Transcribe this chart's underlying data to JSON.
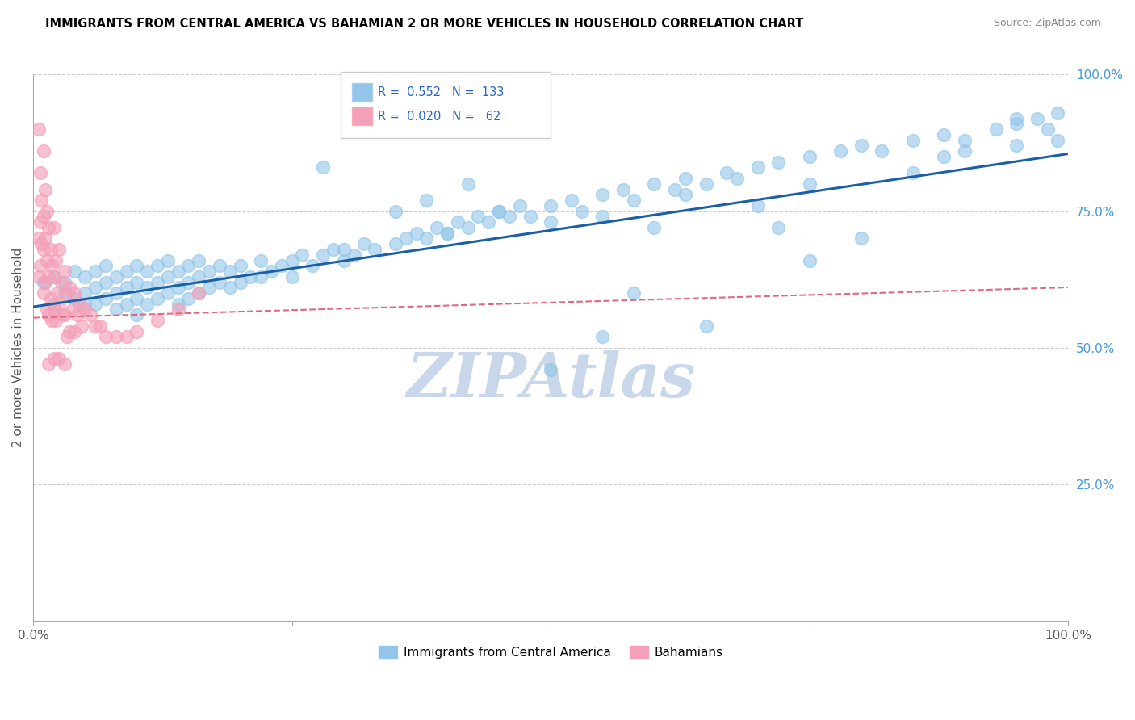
{
  "title": "IMMIGRANTS FROM CENTRAL AMERICA VS BAHAMIAN 2 OR MORE VEHICLES IN HOUSEHOLD CORRELATION CHART",
  "source": "Source: ZipAtlas.com",
  "ylabel": "2 or more Vehicles in Household",
  "xlim": [
    0,
    1.0
  ],
  "ylim": [
    0,
    1.0
  ],
  "ytick_right_labels": [
    "25.0%",
    "50.0%",
    "75.0%",
    "100.0%"
  ],
  "ytick_right_values": [
    0.25,
    0.5,
    0.75,
    1.0
  ],
  "color_blue": "#92C5E8",
  "color_pink": "#F4A0B8",
  "line_blue": "#1A5FA8",
  "line_pink": "#E06880",
  "watermark_color": "#C8D8EA",
  "blue_r": 0.552,
  "blue_n": 133,
  "pink_r": 0.02,
  "pink_n": 62,
  "blue_line_x0": 0.0,
  "blue_line_y0": 0.575,
  "blue_line_x1": 1.0,
  "blue_line_y1": 0.855,
  "pink_line_x0": 0.0,
  "pink_line_y0": 0.555,
  "pink_line_x1": 0.18,
  "pink_line_y1": 0.565,
  "blue_scatter_x": [
    0.01,
    0.02,
    0.02,
    0.03,
    0.03,
    0.04,
    0.04,
    0.05,
    0.05,
    0.05,
    0.06,
    0.06,
    0.06,
    0.07,
    0.07,
    0.07,
    0.08,
    0.08,
    0.08,
    0.09,
    0.09,
    0.09,
    0.1,
    0.1,
    0.1,
    0.1,
    0.11,
    0.11,
    0.11,
    0.12,
    0.12,
    0.12,
    0.13,
    0.13,
    0.13,
    0.14,
    0.14,
    0.14,
    0.15,
    0.15,
    0.15,
    0.16,
    0.16,
    0.16,
    0.17,
    0.17,
    0.18,
    0.18,
    0.19,
    0.19,
    0.2,
    0.2,
    0.21,
    0.22,
    0.22,
    0.23,
    0.24,
    0.25,
    0.25,
    0.26,
    0.27,
    0.28,
    0.29,
    0.3,
    0.3,
    0.31,
    0.32,
    0.33,
    0.35,
    0.36,
    0.37,
    0.38,
    0.39,
    0.4,
    0.41,
    0.42,
    0.43,
    0.44,
    0.45,
    0.46,
    0.47,
    0.48,
    0.5,
    0.5,
    0.52,
    0.53,
    0.55,
    0.55,
    0.57,
    0.58,
    0.6,
    0.62,
    0.63,
    0.65,
    0.67,
    0.68,
    0.7,
    0.72,
    0.75,
    0.75,
    0.78,
    0.8,
    0.82,
    0.85,
    0.88,
    0.88,
    0.9,
    0.93,
    0.95,
    0.95,
    0.97,
    0.98,
    0.99,
    0.99,
    0.45,
    0.6,
    0.63,
    0.7,
    0.35,
    0.4,
    0.55,
    0.28,
    0.5,
    0.65,
    0.75,
    0.8,
    0.42,
    0.58,
    0.72,
    0.85,
    0.9,
    0.95,
    0.38
  ],
  "blue_scatter_y": [
    0.62,
    0.63,
    0.58,
    0.62,
    0.6,
    0.64,
    0.59,
    0.63,
    0.6,
    0.58,
    0.64,
    0.61,
    0.58,
    0.65,
    0.62,
    0.59,
    0.63,
    0.6,
    0.57,
    0.64,
    0.61,
    0.58,
    0.65,
    0.62,
    0.59,
    0.56,
    0.64,
    0.61,
    0.58,
    0.65,
    0.62,
    0.59,
    0.66,
    0.63,
    0.6,
    0.64,
    0.61,
    0.58,
    0.65,
    0.62,
    0.59,
    0.66,
    0.63,
    0.6,
    0.64,
    0.61,
    0.65,
    0.62,
    0.64,
    0.61,
    0.65,
    0.62,
    0.63,
    0.66,
    0.63,
    0.64,
    0.65,
    0.66,
    0.63,
    0.67,
    0.65,
    0.67,
    0.68,
    0.66,
    0.68,
    0.67,
    0.69,
    0.68,
    0.69,
    0.7,
    0.71,
    0.7,
    0.72,
    0.71,
    0.73,
    0.72,
    0.74,
    0.73,
    0.75,
    0.74,
    0.76,
    0.74,
    0.76,
    0.73,
    0.77,
    0.75,
    0.78,
    0.74,
    0.79,
    0.77,
    0.8,
    0.79,
    0.81,
    0.8,
    0.82,
    0.81,
    0.83,
    0.84,
    0.85,
    0.8,
    0.86,
    0.87,
    0.86,
    0.88,
    0.89,
    0.85,
    0.88,
    0.9,
    0.91,
    0.87,
    0.92,
    0.9,
    0.93,
    0.88,
    0.75,
    0.72,
    0.78,
    0.76,
    0.75,
    0.71,
    0.52,
    0.83,
    0.46,
    0.54,
    0.66,
    0.7,
    0.8,
    0.6,
    0.72,
    0.82,
    0.86,
    0.92,
    0.77
  ],
  "pink_scatter_x": [
    0.005,
    0.005,
    0.005,
    0.007,
    0.007,
    0.007,
    0.008,
    0.008,
    0.01,
    0.01,
    0.01,
    0.01,
    0.012,
    0.012,
    0.012,
    0.013,
    0.013,
    0.013,
    0.015,
    0.015,
    0.015,
    0.015,
    0.017,
    0.017,
    0.018,
    0.018,
    0.02,
    0.02,
    0.02,
    0.02,
    0.022,
    0.022,
    0.023,
    0.025,
    0.025,
    0.025,
    0.027,
    0.028,
    0.03,
    0.03,
    0.03,
    0.032,
    0.033,
    0.035,
    0.035,
    0.038,
    0.04,
    0.04,
    0.043,
    0.045,
    0.047,
    0.05,
    0.055,
    0.06,
    0.065,
    0.07,
    0.08,
    0.09,
    0.1,
    0.12,
    0.14,
    0.16
  ],
  "pink_scatter_y": [
    0.9,
    0.7,
    0.63,
    0.82,
    0.73,
    0.65,
    0.77,
    0.69,
    0.86,
    0.74,
    0.68,
    0.6,
    0.79,
    0.7,
    0.62,
    0.75,
    0.66,
    0.57,
    0.72,
    0.63,
    0.56,
    0.47,
    0.68,
    0.59,
    0.65,
    0.55,
    0.72,
    0.63,
    0.57,
    0.48,
    0.66,
    0.55,
    0.6,
    0.68,
    0.58,
    0.48,
    0.62,
    0.56,
    0.64,
    0.56,
    0.47,
    0.6,
    0.52,
    0.61,
    0.53,
    0.57,
    0.6,
    0.53,
    0.56,
    0.58,
    0.54,
    0.57,
    0.56,
    0.54,
    0.54,
    0.52,
    0.52,
    0.52,
    0.53,
    0.55,
    0.57,
    0.6
  ]
}
